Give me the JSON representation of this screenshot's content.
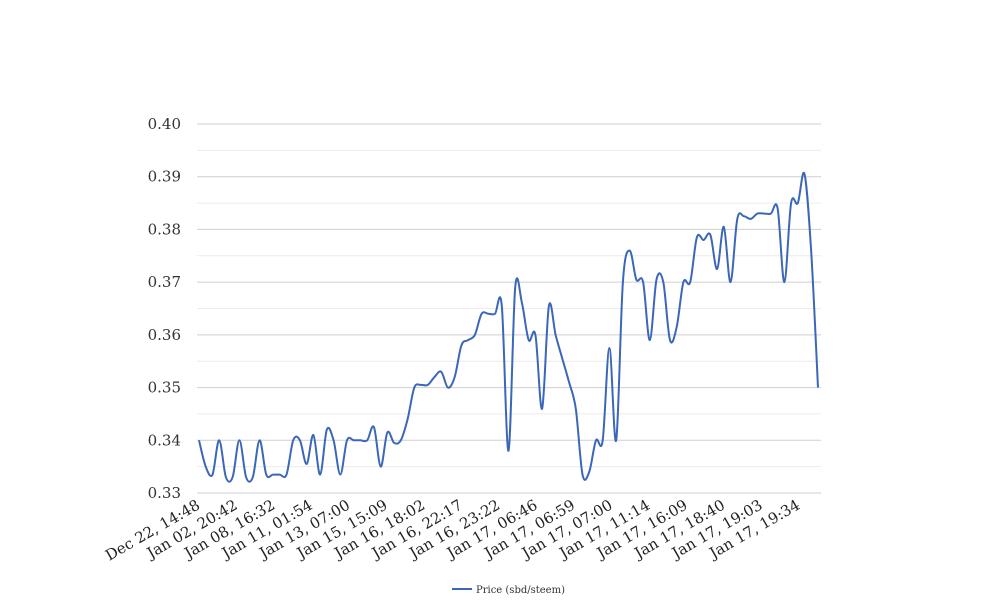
{
  "chart_data": {
    "type": "line",
    "title": "",
    "xlabel": "",
    "ylabel": "",
    "ylim": [
      0.33,
      0.4
    ],
    "yticks": [
      "0.33",
      "0.34",
      "0.35",
      "0.36",
      "0.37",
      "0.38",
      "0.39",
      "0.40"
    ],
    "grid": true,
    "legend_position": "bottom",
    "x_tick_labels": [
      "Dec 22, 14:48",
      "Jan 02, 20:42",
      "Jan 08, 16:32",
      "Jan 11, 01:54",
      "Jan 13, 07:00",
      "Jan 15, 15:09",
      "Jan 16, 18:02",
      "Jan 16, 22:17",
      "Jan 16, 23:22",
      "Jan 17, 06:46",
      "Jan 17, 06:59",
      "Jan 17, 07:00",
      "Jan 17, 11:14",
      "Jan 17, 16:09",
      "Jan 17, 18:40",
      "Jan 17, 19:03",
      "Jan 17, 19:34"
    ],
    "series": [
      {
        "name": "Price (sbd/steem)",
        "color": "#3b67b9",
        "values": [
          0.34,
          0.335,
          0.3335,
          0.34,
          0.333,
          0.333,
          0.34,
          0.333,
          0.333,
          0.34,
          0.3335,
          0.3335,
          0.3335,
          0.3335,
          0.34,
          0.34,
          0.3355,
          0.341,
          0.3335,
          0.342,
          0.34,
          0.3335,
          0.34,
          0.34,
          0.34,
          0.34,
          0.3425,
          0.335,
          0.3415,
          0.3395,
          0.34,
          0.344,
          0.35,
          0.3505,
          0.3505,
          0.352,
          0.353,
          0.35,
          0.352,
          0.358,
          0.359,
          0.36,
          0.364,
          0.364,
          0.364,
          0.3655,
          0.338,
          0.369,
          0.366,
          0.359,
          0.36,
          0.346,
          0.3655,
          0.36,
          0.3555,
          0.351,
          0.346,
          0.3335,
          0.334,
          0.34,
          0.34,
          0.3575,
          0.34,
          0.37,
          0.376,
          0.3705,
          0.37,
          0.359,
          0.3705,
          0.37,
          0.359,
          0.3615,
          0.37,
          0.37,
          0.3785,
          0.378,
          0.379,
          0.3725,
          0.3805,
          0.37,
          0.382,
          0.3825,
          0.382,
          0.383,
          0.383,
          0.383,
          0.384,
          0.37,
          0.385,
          0.385,
          0.3905,
          0.3755,
          0.35
        ]
      }
    ]
  }
}
